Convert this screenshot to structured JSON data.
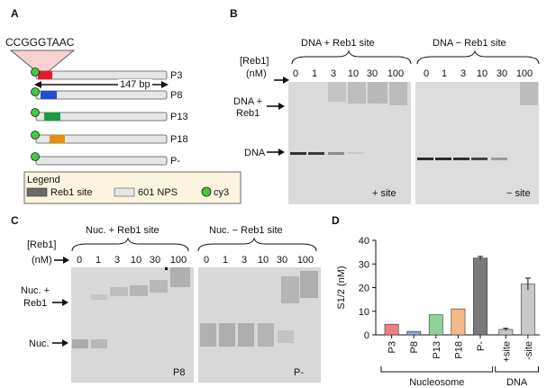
{
  "panelA": {
    "letter": "A",
    "sequence": "CCGGGTAAC",
    "length_label": "147 bp",
    "constructs": [
      "P3",
      "P8",
      "P13",
      "P18",
      "P-"
    ],
    "legend": {
      "title": "Legend",
      "items": [
        "Reb1 site",
        "601 NPS",
        "cy3"
      ]
    },
    "colors": {
      "P3": "#e8192c",
      "P8": "#1f4fd6",
      "P13": "#1a9b47",
      "P18": "#e8900c",
      "cy3": "#3dcc3d",
      "reb1_site": "#6b6b6b",
      "nps": "#e0e0e0"
    }
  },
  "panelB": {
    "letter": "B",
    "reb1_label": "[Reb1]",
    "unit_label": "(nM)",
    "gel_left_title": "DNA + Reb1 site",
    "gel_right_title": "DNA − Reb1 site",
    "lanes": [
      "0",
      "1",
      "3",
      "10",
      "30",
      "100"
    ],
    "bound_label_1": "DNA +",
    "bound_label_2": "Reb1",
    "free_label": "DNA",
    "left_corner": "+ site",
    "right_corner": "− site"
  },
  "panelC": {
    "letter": "C",
    "reb1_label": "[Reb1]",
    "unit_label": "(nM)",
    "gel_left_title": "Nuc. + Reb1 site",
    "gel_right_title": "Nuc. − Reb1 site",
    "lanes": [
      "0",
      "1",
      "3",
      "10",
      "30",
      "100"
    ],
    "bound_label_1": "Nuc. +",
    "bound_label_2": "Reb1",
    "free_label": "Nuc.",
    "left_corner": "P8",
    "right_corner": "P-"
  },
  "panelD": {
    "letter": "D",
    "group_labels": [
      "Nucleosome",
      "DNA"
    ],
    "chart_data": {
      "type": "bar",
      "categories": [
        "P3",
        "P8",
        "P13",
        "P18",
        "P-",
        "+site",
        "-site"
      ],
      "values": [
        4.5,
        1.5,
        8.5,
        11,
        32.5,
        2.3,
        21.5
      ],
      "errors": [
        0,
        0,
        0,
        0,
        0.7,
        0.5,
        2.5
      ],
      "colors": [
        "#f08080",
        "#8ea0e0",
        "#8fd39b",
        "#f5b98a",
        "#7a7a7a",
        "#c8c8c8",
        "#c8c8c8"
      ],
      "ylabel": "S1/2 (nM)",
      "ylim": [
        0,
        40
      ],
      "yticks": [
        "0",
        "10",
        "20",
        "30",
        "40"
      ]
    }
  }
}
